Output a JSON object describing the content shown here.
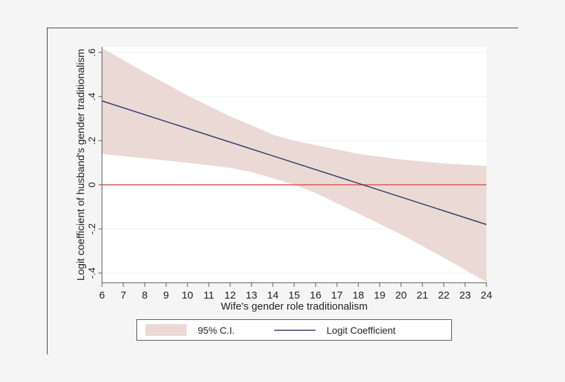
{
  "chart_data": {
    "type": "line",
    "title": "",
    "xlabel": "Wife's gender role traditionalism",
    "ylabel": "Logit coefficient of husband's gender traditionalism",
    "xlim": [
      6,
      24
    ],
    "ylim": [
      -0.44,
      0.63
    ],
    "x_ticks": [
      6,
      7,
      8,
      9,
      10,
      11,
      12,
      13,
      14,
      15,
      16,
      17,
      18,
      19,
      20,
      21,
      22,
      23,
      24
    ],
    "y_ticks": [
      -0.4,
      -0.2,
      0,
      0.2,
      0.4,
      0.6
    ],
    "y_tick_labels": [
      "-.4",
      "-.2",
      "0",
      ".2",
      ".4",
      ".6"
    ],
    "grid": "horizontal",
    "reference_line": {
      "y": 0,
      "color": "#d9534f"
    },
    "series": [
      {
        "name": "95% C.I.",
        "kind": "band",
        "color": "#ead9d5",
        "x": [
          6,
          8,
          10,
          12,
          13,
          14,
          15,
          16,
          18,
          20,
          22,
          24
        ],
        "upper": [
          0.62,
          0.51,
          0.405,
          0.31,
          0.27,
          0.227,
          0.2,
          0.18,
          0.14,
          0.115,
          0.097,
          0.085
        ],
        "lower": [
          0.14,
          0.12,
          0.1,
          0.077,
          0.058,
          0.03,
          0.0,
          -0.037,
          -0.13,
          -0.225,
          -0.33,
          -0.44
        ]
      },
      {
        "name": "Logit Coefficient",
        "kind": "line",
        "color": "#2b3a6b",
        "x": [
          6,
          24
        ],
        "y": [
          0.38,
          -0.18
        ]
      }
    ],
    "legend": {
      "placement": "bottom",
      "entries": [
        "95% C.I.",
        "Logit Coefficient"
      ]
    }
  }
}
